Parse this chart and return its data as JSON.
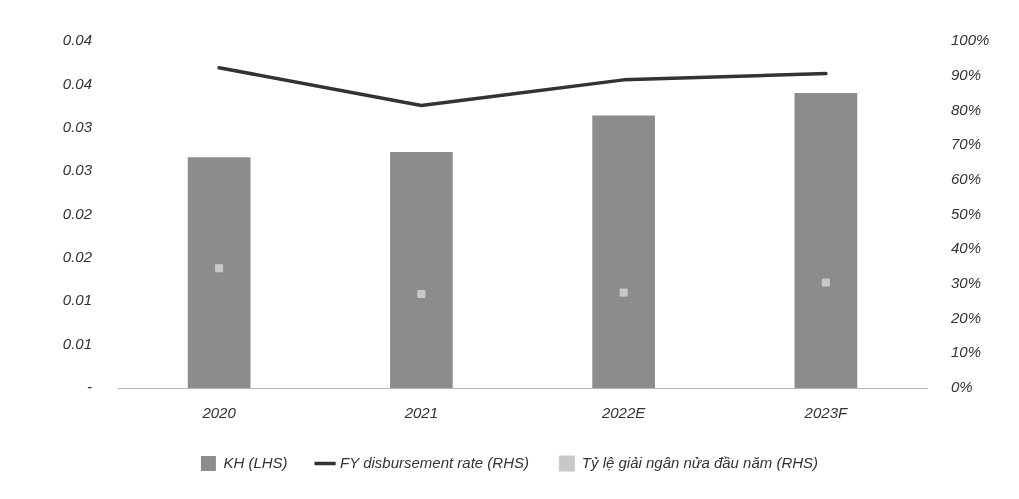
{
  "chart_data": {
    "type": "bar",
    "categories": [
      "2020",
      "2021",
      "2022E",
      "2023F"
    ],
    "series": [
      {
        "name": "KH (LHS)",
        "color": "#8c8c8c",
        "values": [
          0.0266,
          0.0272,
          0.0314,
          0.034
        ]
      },
      {
        "name": "FY disbursement rate (RHS)",
        "type": "line",
        "axis": "y2",
        "color": "#333333",
        "marker": "none",
        "values": [
          92.3,
          81.4,
          88.8,
          90.6
        ]
      },
      {
        "name": "Tỷ lệ giải ngân nửa đầu năm (RHS)",
        "type": "scatter",
        "axis": "y2",
        "color": "#c8c8c8",
        "marker": "square",
        "values": [
          34.5,
          27.1,
          27.5,
          30.4
        ]
      }
    ],
    "ylim": [
      0,
      0.04
    ],
    "yticks": [
      {
        "value": 0,
        "label": "-"
      },
      {
        "value": 0.005,
        "label": "0.01"
      },
      0.01,
      {
        "value": 0.015,
        "label": "0.02"
      },
      0.02,
      {
        "value": 0.025,
        "label": "0.03"
      },
      0.03,
      {
        "value": 0.035,
        "label": "0.04"
      },
      0.04
    ],
    "y2lim": [
      0,
      100
    ],
    "y2ticks": [
      {
        "value": 0,
        "label": "0%"
      },
      {
        "value": 10,
        "label": "10%"
      },
      {
        "value": 20,
        "label": "20%"
      },
      {
        "value": 30,
        "label": "30%"
      },
      {
        "value": 40,
        "label": "40%"
      },
      {
        "value": 50,
        "label": "50%"
      },
      {
        "value": 60,
        "label": "60%"
      },
      {
        "value": 70,
        "label": "70%"
      },
      {
        "value": 80,
        "label": "80%"
      },
      {
        "value": 90,
        "label": "90%"
      },
      {
        "value": 100,
        "label": "100%"
      }
    ],
    "grid": false,
    "legend": "bottom"
  }
}
